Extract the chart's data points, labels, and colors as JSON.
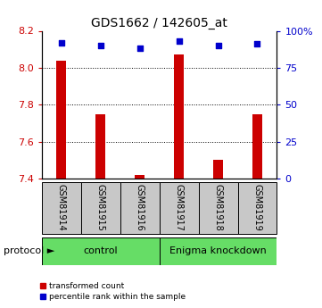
{
  "title": "GDS1662 / 142605_at",
  "samples": [
    "GSM81914",
    "GSM81915",
    "GSM81916",
    "GSM81917",
    "GSM81918",
    "GSM81919"
  ],
  "transformed_count": [
    8.04,
    7.75,
    7.42,
    8.07,
    7.5,
    7.75
  ],
  "percentile_rank": [
    92,
    90,
    88,
    93,
    90,
    91
  ],
  "ylim_left": [
    7.4,
    8.2
  ],
  "ylim_right": [
    0,
    100
  ],
  "yticks_left": [
    7.4,
    7.6,
    7.8,
    8.0,
    8.2
  ],
  "yticks_right": [
    0,
    25,
    50,
    75,
    100
  ],
  "ytick_labels_right": [
    "0",
    "25",
    "50",
    "75",
    "100%"
  ],
  "bar_color": "#CC0000",
  "square_color": "#0000CC",
  "bar_width": 0.25,
  "control_color": "#66DD66",
  "knockdown_color": "#66DD66",
  "sample_bg_color": "#C8C8C8",
  "legend_label_count": "transformed count",
  "legend_label_pct": "percentile rank within the sample",
  "protocol_label": "protocol",
  "title_fontsize": 10,
  "tick_fontsize": 8,
  "label_fontsize": 7,
  "prot_fontsize": 8
}
